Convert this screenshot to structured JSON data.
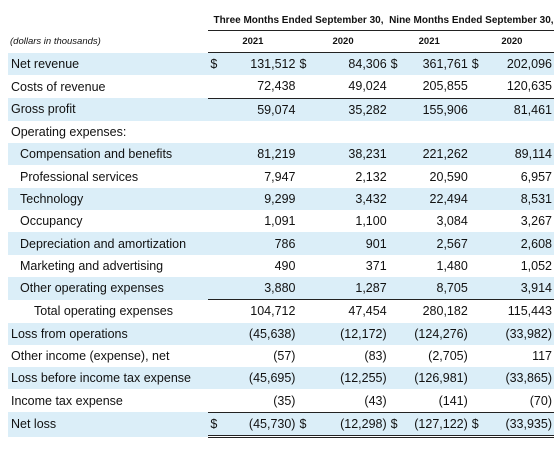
{
  "header": {
    "three_months": "Three Months Ended September 30,",
    "nine_months": "Nine Months Ended September 30,",
    "units_note": "(dollars in thousands)",
    "years": [
      "2021",
      "2020",
      "2021",
      "2020"
    ]
  },
  "rows": [
    {
      "label": "Net revenue",
      "dollar": "$",
      "values": [
        "131,512",
        "84,306",
        "361,761",
        "202,096"
      ]
    },
    {
      "label": "Costs of revenue",
      "values": [
        "72,438",
        "49,024",
        "205,855",
        "120,635"
      ]
    },
    {
      "label": "Gross profit",
      "values": [
        "59,074",
        "35,282",
        "155,906",
        "81,461"
      ]
    },
    {
      "label": "Operating expenses:",
      "values": [
        "",
        "",
        "",
        ""
      ]
    },
    {
      "label": "Compensation and benefits",
      "values": [
        "81,219",
        "38,231",
        "221,262",
        "89,114"
      ]
    },
    {
      "label": "Professional services",
      "values": [
        "7,947",
        "2,132",
        "20,590",
        "6,957"
      ]
    },
    {
      "label": "Technology",
      "values": [
        "9,299",
        "3,432",
        "22,494",
        "8,531"
      ]
    },
    {
      "label": "Occupancy",
      "values": [
        "1,091",
        "1,100",
        "3,084",
        "3,267"
      ]
    },
    {
      "label": "Depreciation and amortization",
      "values": [
        "786",
        "901",
        "2,567",
        "2,608"
      ]
    },
    {
      "label": "Marketing and advertising",
      "values": [
        "490",
        "371",
        "1,480",
        "1,052"
      ]
    },
    {
      "label": "Other operating expenses",
      "values": [
        "3,880",
        "1,287",
        "8,705",
        "3,914"
      ]
    },
    {
      "label": "Total operating expenses",
      "values": [
        "104,712",
        "47,454",
        "280,182",
        "115,443"
      ]
    },
    {
      "label": "Loss from operations",
      "values": [
        "(45,638)",
        "(12,172)",
        "(124,276)",
        "(33,982)"
      ]
    },
    {
      "label": "Other income (expense), net",
      "values": [
        "(57)",
        "(83)",
        "(2,705)",
        "117"
      ]
    },
    {
      "label": "Loss before income tax expense",
      "values": [
        "(45,695)",
        "(12,255)",
        "(126,981)",
        "(33,865)"
      ]
    },
    {
      "label": "Income tax expense",
      "values": [
        "(35)",
        "(43)",
        "(141)",
        "(70)"
      ]
    },
    {
      "label": "Net loss",
      "dollar": "$",
      "values": [
        "(45,730)",
        "(12,298)",
        "(127,122)",
        "(33,935)"
      ]
    }
  ]
}
